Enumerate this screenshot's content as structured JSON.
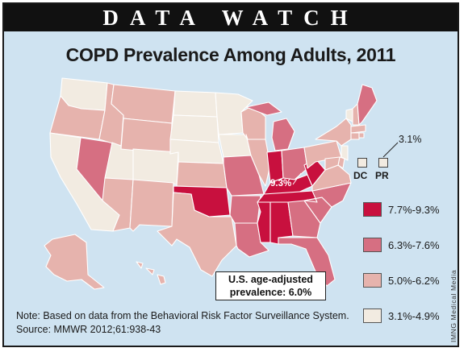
{
  "header": "DATA WATCH",
  "title": "COPD Prevalence Among Adults, 2011",
  "colors": {
    "band_high": "#c8103e",
    "band_mid": "#d66f82",
    "band_low": "#e6b3ad",
    "band_lowest": "#f2ebe1",
    "background": "#cfe3f1"
  },
  "legend": [
    {
      "label": "7.7%-9.3%",
      "color": "#c8103e"
    },
    {
      "label": "6.3%-7.6%",
      "color": "#d66f82"
    },
    {
      "label": "5.0%-6.2%",
      "color": "#e6b3ad"
    },
    {
      "label": "3.1%-4.9%",
      "color": "#f2ebe1"
    }
  ],
  "insets": {
    "dc_label": "DC",
    "pr_label": "PR",
    "pr_value": "3.1%"
  },
  "callouts": {
    "max_value": "9.3%"
  },
  "average_box": {
    "line1": "U.S. age-adjusted",
    "line2": "prevalence: 6.0%"
  },
  "note": {
    "line1": "Note: Based on data from the Behavioral Risk Factor Surveillance System.",
    "line2": "Source: MMWR 2012;61:938-43"
  },
  "credit": "IMNG Medical Media"
}
